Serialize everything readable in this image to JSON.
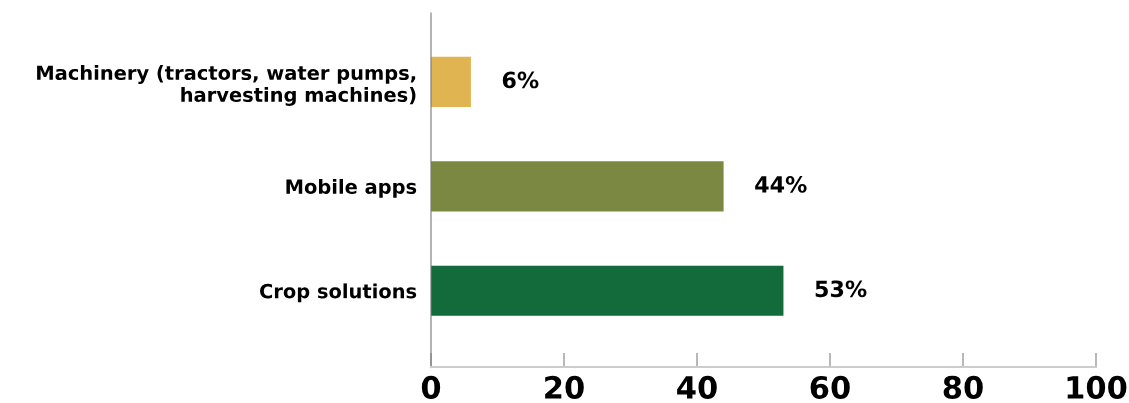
{
  "chart_data": {
    "type": "bar",
    "orientation": "horizontal",
    "categories": [
      "Machinery (tractors, water pumps,\nharvesting machines)",
      "Mobile apps",
      "Crop solutions"
    ],
    "values": [
      6,
      44,
      53
    ],
    "colors": [
      "#e0b451",
      "#7b8841",
      "#136a3a"
    ],
    "value_labels": [
      "6%",
      "44%",
      "53%"
    ],
    "xlim": [
      0,
      100
    ],
    "xticks": [
      0,
      20,
      40,
      60,
      80,
      100
    ],
    "grid": false,
    "legend": false
  }
}
